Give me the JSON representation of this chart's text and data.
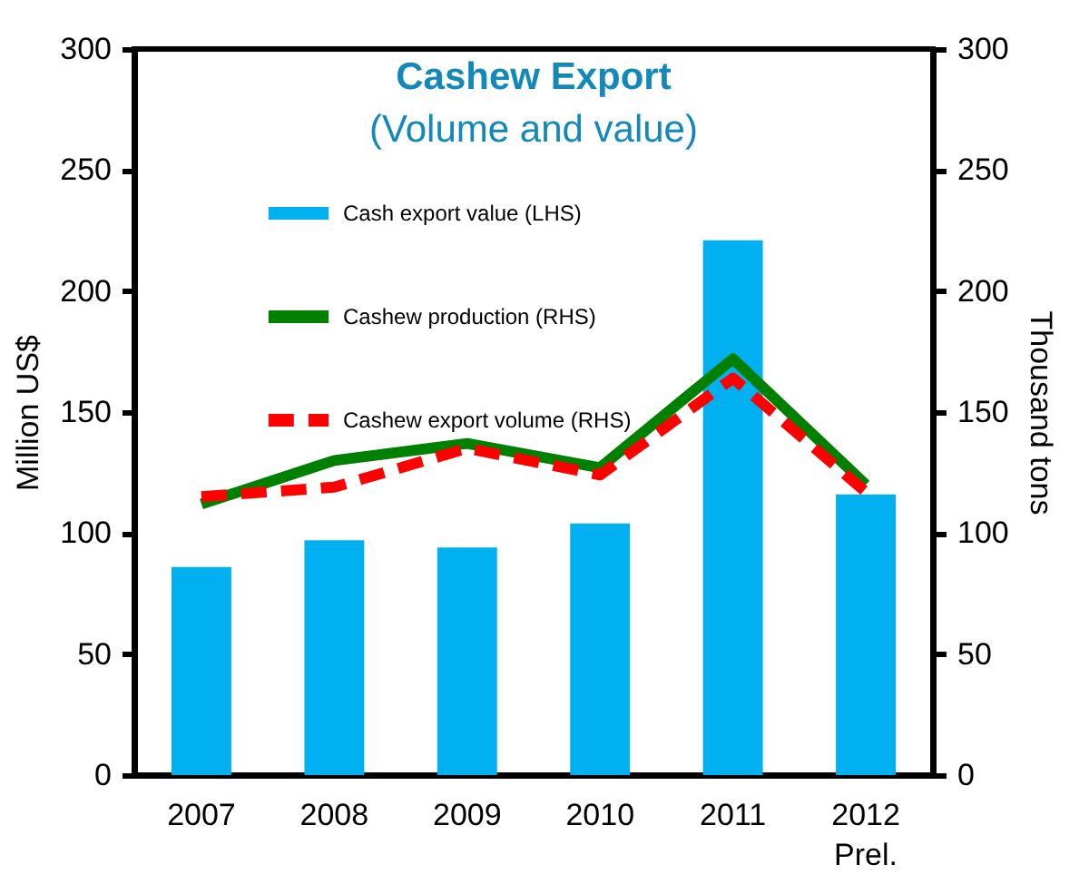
{
  "chart_data": {
    "type": "bar",
    "title": "Cashew Export",
    "subtitle": "(Volume and value)",
    "ylabel": "Million US$",
    "y2label": "Thousand tons",
    "categories": [
      "2007",
      "2008",
      "2009",
      "2010",
      "2011",
      "2012\nPrel."
    ],
    "series": [
      {
        "name": "Cash export value (LHS)",
        "color": "#00b0f0",
        "values": [
          86,
          97,
          94,
          104,
          221,
          116
        ]
      },
      {
        "name": "Cashew production  (RHS)",
        "type": "line",
        "axis": "y2",
        "color": "#008000",
        "line_style": "solid",
        "values": [
          112,
          130,
          137,
          127,
          172,
          120
        ]
      },
      {
        "name": "Cashew export  volume (RHS)",
        "type": "line",
        "axis": "y2",
        "color": "#ff0000",
        "line_style": "dashed",
        "values": [
          115,
          119,
          135,
          124,
          164,
          117
        ]
      }
    ],
    "ylim": [
      0,
      300
    ],
    "yticks": [
      0,
      50,
      100,
      150,
      200,
      250,
      300
    ],
    "y2lim": [
      0,
      300
    ],
    "y2ticks": [
      0,
      50,
      100,
      150,
      200,
      250,
      300
    ],
    "legend": "top left"
  }
}
